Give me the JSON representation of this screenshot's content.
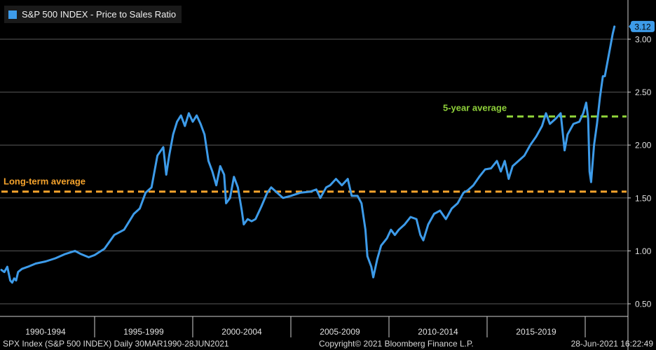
{
  "chart_data": {
    "type": "line",
    "title": "S&P 500 INDEX - Price to Sales Ratio",
    "y_ticks": [
      0.5,
      1.0,
      1.5,
      2.0,
      2.5,
      3.0
    ],
    "y_tick_labels": [
      "0.50",
      "1.00",
      "1.50",
      "2.00",
      "2.50",
      "3.00"
    ],
    "ylim": [
      0.4,
      3.3
    ],
    "xlim": [
      1990.25,
      2021.5
    ],
    "x_period_labels": [
      "1990-1994",
      "1995-1999",
      "2000-2004",
      "2005-2009",
      "2010-2014",
      "2015-2019"
    ],
    "x_period_starts": [
      1990,
      1995,
      2000,
      2005,
      2010,
      2015,
      2020
    ],
    "grid": true,
    "legend_position": "top-left",
    "last_value_label": "3.12",
    "series": [
      {
        "name": "S&P 500 INDEX - Price to Sales Ratio",
        "color": "#3d9be9",
        "x": [
          1990.25,
          1990.4,
          1990.55,
          1990.7,
          1990.8,
          1990.9,
          1991.0,
          1991.1,
          1991.3,
          1991.6,
          1992.0,
          1992.5,
          1993.0,
          1993.5,
          1994.0,
          1994.3,
          1994.7,
          1995.0,
          1995.5,
          1996.0,
          1996.5,
          1997.0,
          1997.3,
          1997.6,
          1997.9,
          1998.2,
          1998.5,
          1998.65,
          1998.8,
          1999.0,
          1999.2,
          1999.4,
          1999.6,
          1999.8,
          2000.0,
          2000.2,
          2000.4,
          2000.6,
          2000.8,
          2001.0,
          2001.2,
          2001.4,
          2001.6,
          2001.7,
          2001.9,
          2002.1,
          2002.3,
          2002.5,
          2002.6,
          2002.8,
          2003.0,
          2003.2,
          2003.5,
          2003.8,
          2004.0,
          2004.3,
          2004.6,
          2005.0,
          2005.5,
          2006.0,
          2006.3,
          2006.5,
          2006.8,
          2007.0,
          2007.3,
          2007.6,
          2007.9,
          2008.1,
          2008.4,
          2008.6,
          2008.8,
          2008.9,
          2009.0,
          2009.1,
          2009.2,
          2009.4,
          2009.6,
          2009.9,
          2010.1,
          2010.3,
          2010.5,
          2010.8,
          2011.1,
          2011.4,
          2011.6,
          2011.75,
          2012.0,
          2012.3,
          2012.6,
          2012.9,
          2013.2,
          2013.5,
          2013.8,
          2014.0,
          2014.3,
          2014.6,
          2014.9,
          2015.2,
          2015.5,
          2015.7,
          2015.9,
          2016.1,
          2016.3,
          2016.6,
          2016.9,
          2017.2,
          2017.5,
          2017.8,
          2018.0,
          2018.2,
          2018.5,
          2018.75,
          2018.95,
          2019.1,
          2019.4,
          2019.7,
          2019.9,
          2020.05,
          2020.15,
          2020.22,
          2020.3,
          2020.45,
          2020.6,
          2020.75,
          2020.9,
          2021.0,
          2021.15,
          2021.3,
          2021.4,
          2021.49
        ],
        "y": [
          0.82,
          0.8,
          0.85,
          0.72,
          0.7,
          0.74,
          0.72,
          0.8,
          0.83,
          0.85,
          0.88,
          0.9,
          0.93,
          0.97,
          1.0,
          0.97,
          0.94,
          0.96,
          1.02,
          1.15,
          1.2,
          1.35,
          1.4,
          1.55,
          1.6,
          1.9,
          1.98,
          1.72,
          1.9,
          2.1,
          2.22,
          2.28,
          2.18,
          2.3,
          2.22,
          2.28,
          2.2,
          2.1,
          1.85,
          1.75,
          1.62,
          1.8,
          1.72,
          1.45,
          1.5,
          1.7,
          1.6,
          1.38,
          1.25,
          1.3,
          1.28,
          1.3,
          1.42,
          1.55,
          1.6,
          1.55,
          1.5,
          1.52,
          1.55,
          1.56,
          1.58,
          1.5,
          1.6,
          1.62,
          1.68,
          1.62,
          1.68,
          1.52,
          1.52,
          1.45,
          1.2,
          0.95,
          0.9,
          0.85,
          0.75,
          0.92,
          1.05,
          1.12,
          1.2,
          1.15,
          1.2,
          1.25,
          1.32,
          1.3,
          1.15,
          1.1,
          1.25,
          1.35,
          1.38,
          1.3,
          1.4,
          1.45,
          1.55,
          1.57,
          1.62,
          1.7,
          1.77,
          1.78,
          1.85,
          1.75,
          1.85,
          1.68,
          1.8,
          1.85,
          1.9,
          2.0,
          2.08,
          2.18,
          2.3,
          2.2,
          2.25,
          2.3,
          1.95,
          2.1,
          2.2,
          2.22,
          2.3,
          2.4,
          2.25,
          1.75,
          1.65,
          2.0,
          2.2,
          2.45,
          2.65,
          2.65,
          2.8,
          2.95,
          3.05,
          3.12
        ]
      }
    ],
    "reference_lines": [
      {
        "label": "Long-term average",
        "value": 1.56,
        "color": "#f5a32c",
        "x_start": 1990.25
      },
      {
        "label": "5-year average",
        "value": 2.27,
        "color": "#8fd13a",
        "x_start": 2016.0
      }
    ]
  },
  "footer": {
    "left": "SPX Index (S&P 500 INDEX)  Daily 30MAR1990-28JUN2021",
    "center": "Copyright© 2021 Bloomberg Finance L.P.",
    "right": "28-Jun-2021 16:22:49"
  }
}
